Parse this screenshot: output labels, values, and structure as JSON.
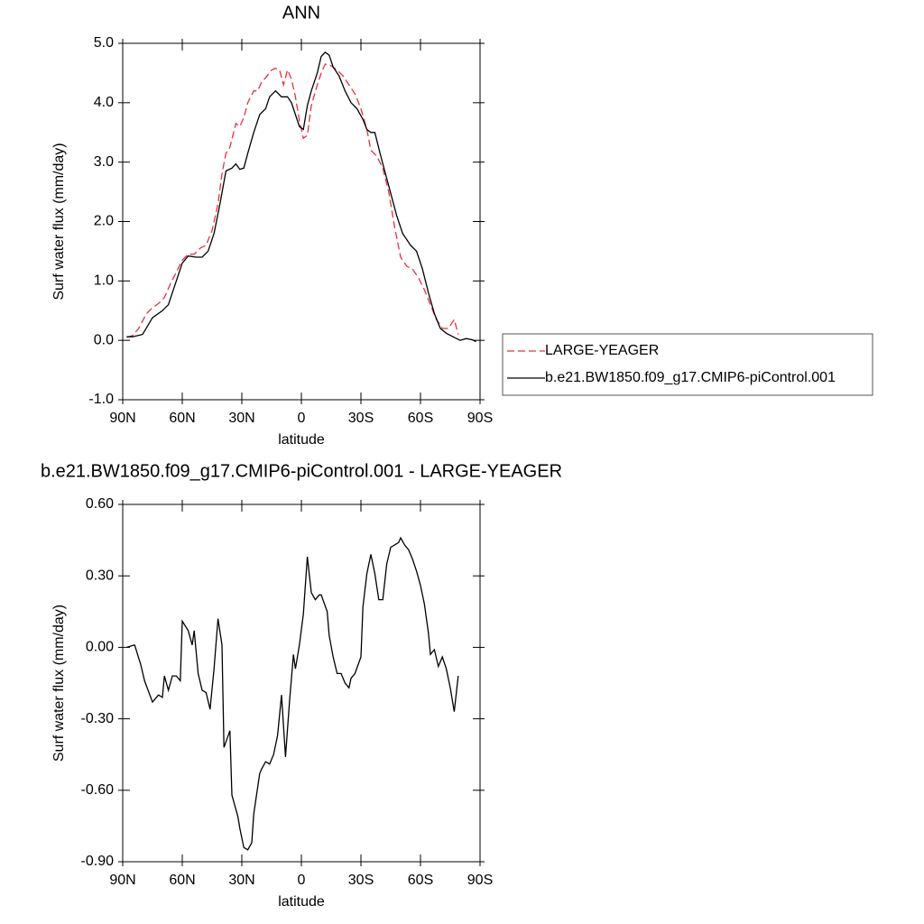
{
  "chart_data": [
    {
      "type": "line",
      "title": "ANN",
      "xlabel": "latitude",
      "ylabel": "Surf water flux (mm/day)",
      "xlim": [
        90,
        -90
      ],
      "xticks": [
        {
          "value": 90,
          "label": "90N"
        },
        {
          "value": 60,
          "label": "60N"
        },
        {
          "value": 30,
          "label": "30N"
        },
        0,
        {
          "value": -30,
          "label": "30S"
        },
        {
          "value": -60,
          "label": "60S"
        },
        {
          "value": -90,
          "label": "90S"
        }
      ],
      "ylim": [
        -1,
        5
      ],
      "yticks": [
        {
          "value": -1,
          "label": "-1.0"
        },
        {
          "value": 0,
          "label": "0.0"
        },
        {
          "value": 1,
          "label": "1.0"
        },
        {
          "value": 2,
          "label": "2.0"
        },
        {
          "value": 3,
          "label": "3.0"
        },
        {
          "value": 4,
          "label": "4.0"
        },
        {
          "value": 5,
          "label": "5.0"
        }
      ],
      "legend": "right",
      "series": [
        {
          "name": "LARGE-YEAGER",
          "color": "#e8313b",
          "line_style": "dashed",
          "x": [
            88,
            85,
            82,
            78,
            75,
            72,
            69,
            66,
            63,
            60,
            57,
            54,
            51,
            48,
            45,
            42,
            40,
            38,
            36,
            33,
            31,
            29,
            27,
            24,
            22,
            20,
            18,
            15,
            13,
            11,
            9,
            7,
            5,
            3,
            1,
            -1,
            -3,
            -5,
            -8,
            -10,
            -12,
            -15,
            -18,
            -21,
            -24,
            -27,
            -30,
            -33,
            -35,
            -38,
            -41,
            -44,
            -47,
            -50,
            -53,
            -56,
            -59,
            -62,
            -65,
            -68,
            -71,
            -74,
            -77,
            -79
          ],
          "values": [
            0.05,
            0.08,
            0.2,
            0.45,
            0.55,
            0.62,
            0.72,
            0.95,
            1.15,
            1.35,
            1.45,
            1.45,
            1.55,
            1.6,
            1.85,
            2.3,
            2.8,
            3.15,
            3.25,
            3.65,
            3.6,
            3.75,
            4.0,
            4.2,
            4.2,
            4.35,
            4.42,
            4.55,
            4.58,
            4.55,
            4.3,
            4.55,
            4.4,
            4.1,
            3.7,
            3.4,
            3.45,
            3.95,
            4.3,
            4.5,
            4.65,
            4.62,
            4.55,
            4.45,
            4.3,
            4.15,
            3.9,
            3.55,
            3.2,
            3.1,
            2.9,
            2.5,
            1.9,
            1.4,
            1.25,
            1.2,
            1.05,
            0.85,
            0.6,
            0.35,
            0.2,
            0.2,
            0.35,
            0.1
          ]
        },
        {
          "name": "b.e21.BW1850.f09_g17.CMIP6-piControl.001",
          "color": "#000000",
          "line_style": "solid",
          "x": [
            88,
            85,
            80,
            75,
            70,
            67,
            63,
            60,
            57,
            53,
            50,
            47,
            44,
            41,
            38,
            35,
            33,
            31,
            29,
            27,
            24,
            21,
            18,
            16,
            13,
            10,
            7,
            5,
            3,
            1,
            -1,
            -3,
            -5,
            -8,
            -10,
            -12,
            -14,
            -16,
            -19,
            -22,
            -25,
            -28,
            -31,
            -33,
            -35,
            -37,
            -40,
            -44,
            -48,
            -51,
            -55,
            -58,
            -61,
            -64,
            -67,
            -70,
            -73,
            -77,
            -80,
            -83,
            -86,
            -88
          ],
          "values": [
            0.06,
            0.06,
            0.1,
            0.38,
            0.5,
            0.6,
            1.0,
            1.3,
            1.42,
            1.4,
            1.4,
            1.5,
            1.8,
            2.3,
            2.85,
            2.9,
            2.97,
            2.88,
            2.9,
            3.15,
            3.5,
            3.8,
            3.9,
            4.1,
            4.2,
            4.1,
            4.1,
            4.0,
            3.8,
            3.6,
            3.55,
            3.95,
            4.2,
            4.5,
            4.78,
            4.85,
            4.8,
            4.6,
            4.45,
            4.2,
            4.0,
            3.9,
            3.72,
            3.55,
            3.5,
            3.5,
            3.1,
            2.6,
            2.1,
            1.8,
            1.6,
            1.5,
            1.2,
            0.8,
            0.45,
            0.2,
            0.12,
            0.05,
            0.0,
            0.03,
            0.01,
            -0.02
          ]
        }
      ]
    },
    {
      "type": "line",
      "title": "b.e21.BW1850.f09_g17.CMIP6-piControl.001 - LARGE-YEAGER",
      "xlabel": "latitude",
      "ylabel": "Surf water flux (mm/day)",
      "xlim": [
        90,
        -90
      ],
      "xticks": [
        {
          "value": 90,
          "label": "90N"
        },
        {
          "value": 60,
          "label": "60N"
        },
        {
          "value": 30,
          "label": "30N"
        },
        0,
        {
          "value": -30,
          "label": "30S"
        },
        {
          "value": -60,
          "label": "60S"
        },
        {
          "value": -90,
          "label": "90S"
        }
      ],
      "ylim": [
        -0.9,
        0.6
      ],
      "yticks": [
        {
          "value": -0.9,
          "label": "-0.90"
        },
        {
          "value": -0.6,
          "label": "-0.60"
        },
        {
          "value": -0.3,
          "label": "-0.30"
        },
        {
          "value": 0,
          "label": "0.00"
        },
        {
          "value": 0.3,
          "label": "0.30"
        },
        {
          "value": 0.6,
          "label": "0.60"
        }
      ],
      "color": "#000000",
      "x": [
        88,
        84,
        81,
        79,
        75,
        72,
        70,
        69,
        67,
        65,
        63,
        61,
        60,
        57,
        55,
        54,
        52,
        50,
        48,
        46,
        44,
        42,
        40,
        39,
        36,
        35,
        32,
        31,
        29,
        27,
        25,
        24,
        21,
        20,
        18,
        16,
        14,
        12,
        10,
        8,
        6,
        4,
        3,
        1,
        -1,
        -3,
        -5,
        -7,
        -9,
        -10,
        -13,
        -14,
        -16,
        -18,
        -20,
        -22,
        -24,
        -25,
        -27,
        -30,
        -31,
        -33,
        -35,
        -37,
        -39,
        -41,
        -43,
        -45,
        -47,
        -49,
        -50,
        -52,
        -54,
        -56,
        -58,
        -60,
        -62,
        -64,
        -65,
        -67,
        -69,
        -71,
        -73,
        -75,
        -77,
        -79
      ],
      "values": [
        0.0,
        0.01,
        -0.07,
        -0.14,
        -0.23,
        -0.2,
        -0.21,
        -0.12,
        -0.18,
        -0.12,
        -0.12,
        -0.14,
        0.11,
        0.07,
        0.01,
        0.07,
        -0.11,
        -0.18,
        -0.19,
        -0.26,
        -0.09,
        0.12,
        0.01,
        -0.42,
        -0.35,
        -0.62,
        -0.71,
        -0.76,
        -0.84,
        -0.85,
        -0.82,
        -0.7,
        -0.53,
        -0.51,
        -0.48,
        -0.49,
        -0.45,
        -0.37,
        -0.2,
        -0.46,
        -0.23,
        -0.03,
        -0.09,
        0.01,
        0.14,
        0.38,
        0.23,
        0.2,
        0.22,
        0.22,
        0.15,
        0.05,
        -0.04,
        -0.11,
        -0.11,
        -0.15,
        -0.17,
        -0.13,
        -0.11,
        -0.04,
        0.17,
        0.31,
        0.39,
        0.31,
        0.2,
        0.2,
        0.35,
        0.42,
        0.43,
        0.44,
        0.46,
        0.43,
        0.41,
        0.37,
        0.32,
        0.26,
        0.18,
        0.06,
        -0.03,
        -0.01,
        -0.08,
        -0.04,
        -0.09,
        -0.17,
        -0.27,
        -0.12
      ]
    }
  ]
}
